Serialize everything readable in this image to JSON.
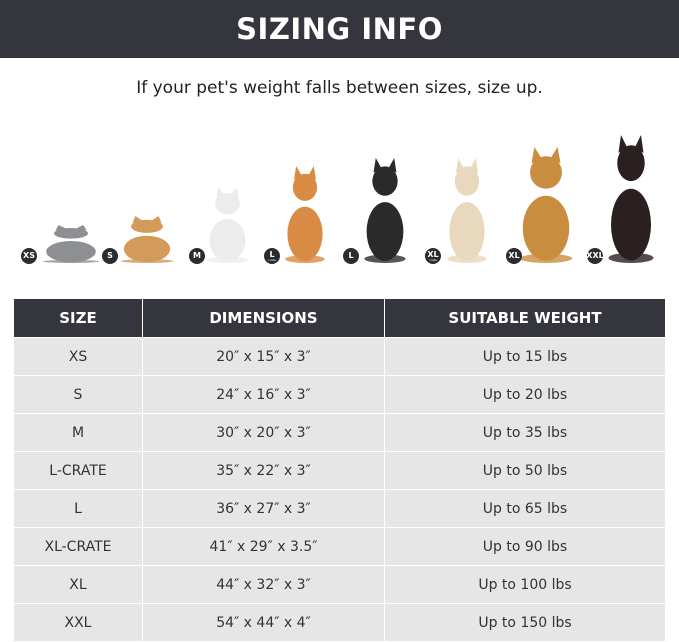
{
  "banner": {
    "title": "SIZING INFO"
  },
  "subtitle": "If your pet's weight falls between sizes, size up.",
  "pets": [
    {
      "badge": "XS",
      "badge_sub": "",
      "icon": "gray-cat-icon",
      "color": "#8d8f93"
    },
    {
      "badge": "S",
      "badge_sub": "",
      "icon": "pomeranian-icon",
      "color": "#d39a5a"
    },
    {
      "badge": "M",
      "badge_sub": "",
      "icon": "french-bulldog-icon",
      "color": "#ececec"
    },
    {
      "badge": "L",
      "badge_sub": "crate",
      "icon": "shiba-inu-icon",
      "color": "#d98a44"
    },
    {
      "badge": "L",
      "badge_sub": "",
      "icon": "border-collie-icon",
      "color": "#2a2a2a"
    },
    {
      "badge": "XL",
      "badge_sub": "crate",
      "icon": "labrador-icon",
      "color": "#e8d8bd"
    },
    {
      "badge": "XL",
      "badge_sub": "",
      "icon": "golden-retriever-icon",
      "color": "#c98d3f"
    },
    {
      "badge": "XXL",
      "badge_sub": "",
      "icon": "doberman-icon",
      "color": "#2a2020"
    }
  ],
  "table": {
    "headers": [
      "SIZE",
      "DIMENSIONS",
      "SUITABLE WEIGHT"
    ],
    "rows": [
      [
        "XS",
        "20″ x 15″ x 3″",
        "Up to 15 lbs"
      ],
      [
        "S",
        "24″ x 16″ x 3″",
        "Up to 20 lbs"
      ],
      [
        "M",
        "30″ x 20″ x 3″",
        "Up to 35 lbs"
      ],
      [
        "L-CRATE",
        "35″ x 22″ x 3″",
        "Up to 50 lbs"
      ],
      [
        "L",
        "36″ x 27″ x 3″",
        "Up to 65 lbs"
      ],
      [
        "XL-CRATE",
        "41″ x 29″ x 3.5″",
        "Up to 90 lbs"
      ],
      [
        "XL",
        "44″ x 32″ x 3″",
        "Up to 100 lbs"
      ],
      [
        "XXL",
        "54″ x 44″ x 4″",
        "Up to 150 lbs"
      ]
    ]
  }
}
